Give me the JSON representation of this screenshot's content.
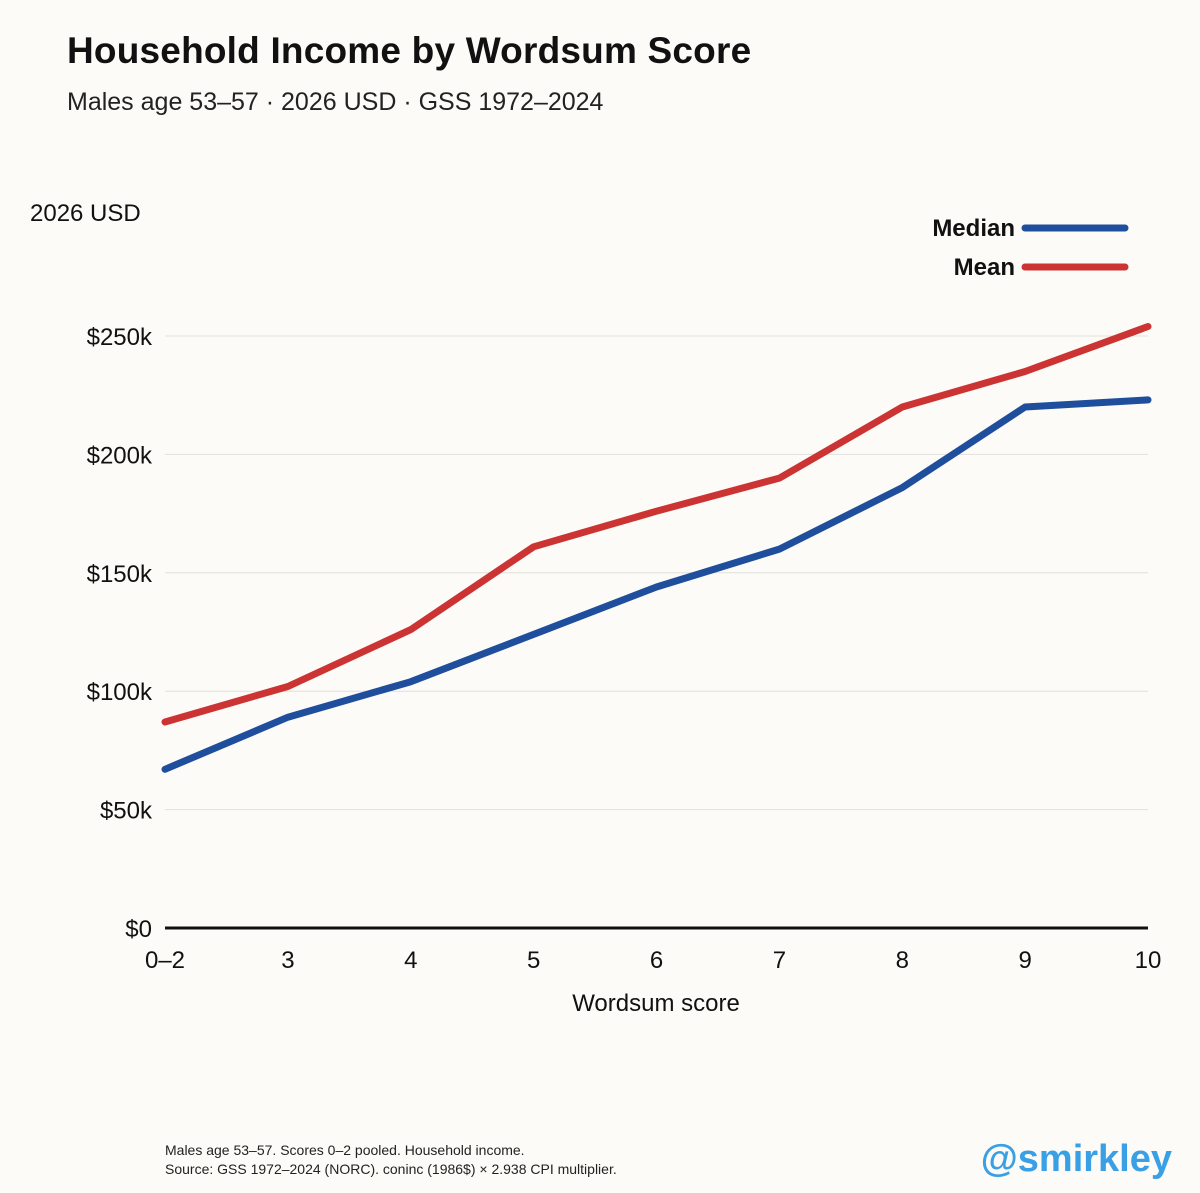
{
  "header": {
    "title": "Household Income by Wordsum Score",
    "subtitle": "Males age 53–57 · 2026 USD · GSS 1972–2024"
  },
  "chart_data": {
    "type": "line",
    "ylabel": "2026 USD",
    "xlabel": "Wordsum score",
    "categories": [
      "0–2",
      "3",
      "4",
      "5",
      "6",
      "7",
      "8",
      "9",
      "10"
    ],
    "ylim": [
      0,
      250000
    ],
    "yticks": [
      0,
      50000,
      100000,
      150000,
      200000,
      250000
    ],
    "ytick_labels": [
      "$0",
      "$50k",
      "$100k",
      "$150k",
      "$200k",
      "$250k"
    ],
    "grid": true,
    "legend_position": "top-right",
    "series": [
      {
        "name": "Median",
        "color": "#1f4e9c",
        "values": [
          67000,
          89000,
          104000,
          124000,
          144000,
          160000,
          186000,
          220000,
          223000
        ]
      },
      {
        "name": "Mean",
        "color": "#cc3333",
        "values": [
          87000,
          102000,
          126000,
          161000,
          176000,
          190000,
          220000,
          235000,
          254000
        ]
      }
    ]
  },
  "footer": {
    "note": "Males age 53–57. Scores 0–2 pooled. Household income.",
    "source": "Source: GSS 1972–2024 (NORC). coninc (1986$) × 2.938 CPI multiplier.",
    "handle": "@smirkley"
  }
}
